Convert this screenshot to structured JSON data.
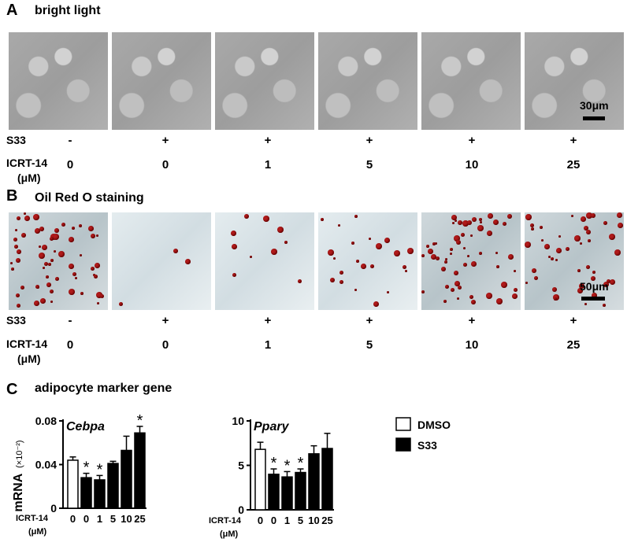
{
  "panelA": {
    "letter": "A",
    "title": "bright light",
    "scale": "30μm"
  },
  "panelB": {
    "letter": "B",
    "title": "Oil Red O staining",
    "scale": "50μm"
  },
  "treatment_rows": {
    "s33_label": "S33",
    "icrt_label": "ICRT-14",
    "icrt_unit": "(μM)",
    "s33_values": [
      "-",
      "+",
      "+",
      "+",
      "+",
      "+"
    ],
    "icrt_values": [
      "0",
      "0",
      "1",
      "5",
      "10",
      "25"
    ]
  },
  "panelC": {
    "letter": "C",
    "title": "adipocyte marker gene",
    "ylabel": "mRNA",
    "ylabel_unit": "(×10⁻²)",
    "x_label": "ICRT-14",
    "x_unit": "(μM)",
    "legend": [
      {
        "name": "DMSO",
        "fill": "#ffffff"
      },
      {
        "name": "S33",
        "fill": "#000000"
      }
    ]
  },
  "chart_data": [
    {
      "type": "bar",
      "title": "Cebpa",
      "categories": [
        "0",
        "0",
        "1",
        "5",
        "10",
        "25"
      ],
      "groups": [
        "DMSO",
        "S33",
        "S33",
        "S33",
        "S33",
        "S33"
      ],
      "values": [
        0.044,
        0.028,
        0.026,
        0.041,
        0.053,
        0.069
      ],
      "errors": [
        0.003,
        0.004,
        0.004,
        0.002,
        0.013,
        0.006
      ],
      "significant": [
        false,
        true,
        true,
        false,
        false,
        true
      ],
      "ylim": [
        0,
        0.08
      ],
      "yticks": [
        "0",
        "0.04",
        "0.08"
      ],
      "ytick_values": [
        0,
        0.04,
        0.08
      ]
    },
    {
      "type": "bar",
      "title": "Ppary",
      "categories": [
        "0",
        "0",
        "1",
        "5",
        "10",
        "25"
      ],
      "groups": [
        "DMSO",
        "S33",
        "S33",
        "S33",
        "S33",
        "S33"
      ],
      "values": [
        6.8,
        4.0,
        3.7,
        4.2,
        6.3,
        6.9
      ],
      "errors": [
        0.8,
        0.6,
        0.6,
        0.4,
        0.9,
        1.7
      ],
      "significant": [
        false,
        true,
        true,
        true,
        false,
        false
      ],
      "ylim": [
        0,
        10
      ],
      "yticks": [
        "0",
        "5",
        "10"
      ],
      "ytick_values": [
        0,
        5,
        10
      ]
    }
  ],
  "colors": {
    "stain_red": "#b11a1a",
    "brightfield_gray": "#a9a9a9",
    "axis": "#000000"
  }
}
